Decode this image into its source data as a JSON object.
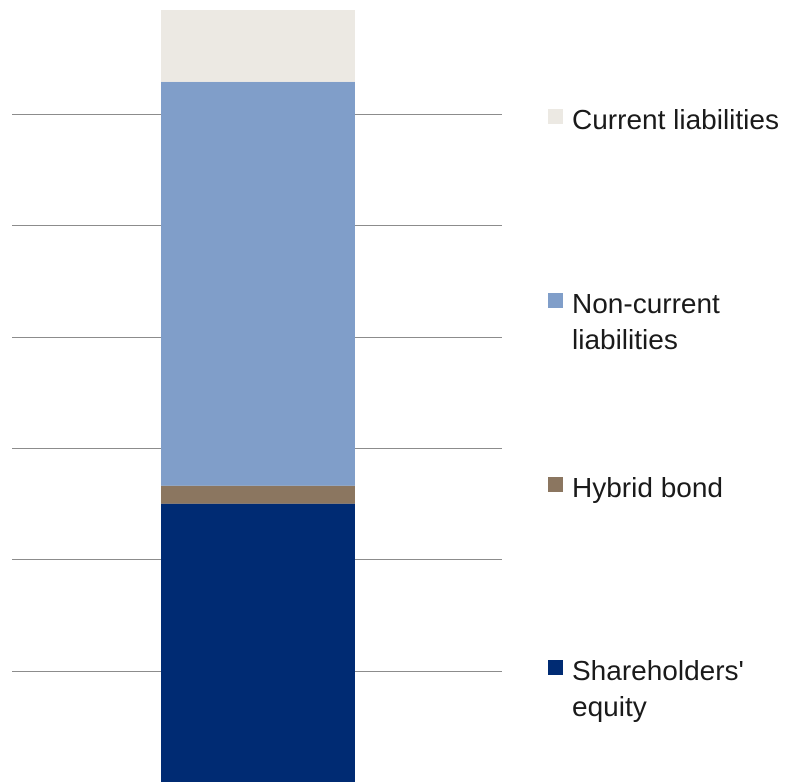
{
  "chart_data": {
    "type": "bar",
    "stacked": true,
    "categories": [
      ""
    ],
    "series": [
      {
        "name": "Shareholders' equity",
        "values": [
          31
        ],
        "color": "#002b73"
      },
      {
        "name": "Hybrid bond",
        "values": [
          2
        ],
        "color": "#8b7660"
      },
      {
        "name": "Non-current liabilities",
        "values": [
          45
        ],
        "color": "#809ec9"
      },
      {
        "name": "Current liabilities",
        "values": [
          8
        ],
        "color": "#ece9e3"
      }
    ],
    "ylim": [
      0,
      86
    ],
    "grid": true,
    "legend_position": "right"
  },
  "legend": [
    {
      "label": "Current liabilities",
      "color": "#ece9e3"
    },
    {
      "label": "Non-current\nliabilities",
      "color": "#809ec9"
    },
    {
      "label": "Hybrid bond",
      "color": "#8b7660"
    },
    {
      "label": "Shareholders'\nequity",
      "color": "#002b73"
    }
  ]
}
